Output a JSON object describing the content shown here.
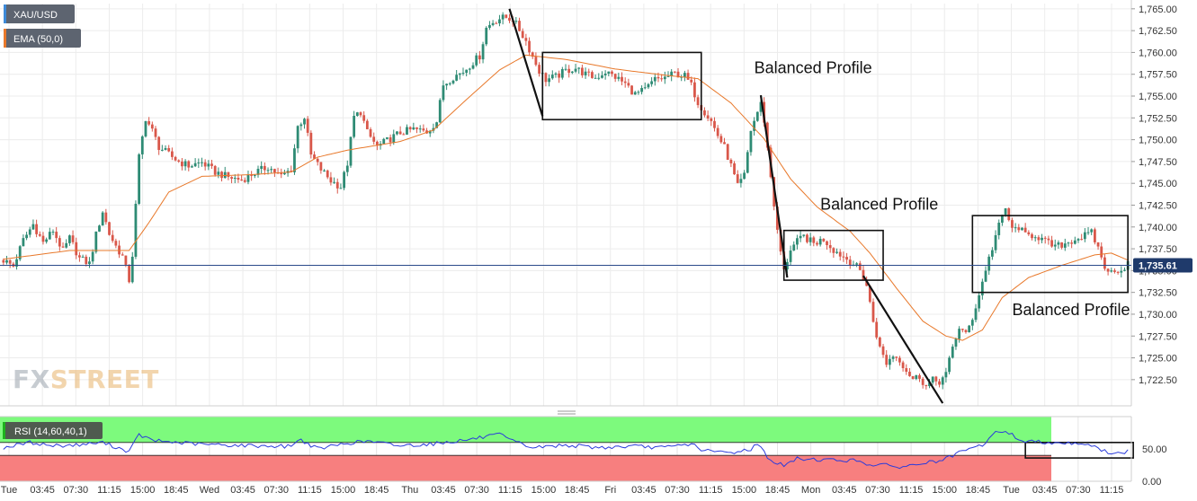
{
  "chart_data": {
    "type": "line",
    "instrument": {
      "symbol_label": "XAU/USD"
    },
    "indicator": {
      "label": "EMA (50,0)",
      "color": "#e8782a"
    },
    "last_price": {
      "label": "1,735.61",
      "value": 1735.61
    },
    "y_axis": {
      "ylim": [
        1719.5,
        1765.6
      ],
      "ticks": [
        "1,765.00",
        "1,762.50",
        "1,760.00",
        "1,757.50",
        "1,755.00",
        "1,752.50",
        "1,750.00",
        "1,747.50",
        "1,745.00",
        "1,742.50",
        "1,740.00",
        "1,737.50",
        "1,735.00",
        "1,732.50",
        "1,730.00",
        "1,727.50",
        "1,725.00",
        "1,722.50"
      ],
      "tick_values": [
        1765,
        1762.5,
        1760,
        1757.5,
        1755,
        1752.5,
        1750,
        1747.5,
        1745,
        1742.5,
        1740,
        1737.5,
        1735,
        1732.5,
        1730,
        1727.5,
        1725,
        1722.5
      ]
    },
    "x_axis": {
      "ticks": [
        "Tue",
        "03:45",
        "07:30",
        "11:15",
        "15:00",
        "18:45",
        "Wed",
        "03:45",
        "07:30",
        "11:15",
        "15:00",
        "18:45",
        "Thu",
        "03:45",
        "07:30",
        "11:15",
        "15:00",
        "18:45",
        "Fri",
        "03:45",
        "07:30",
        "11:15",
        "15:00",
        "18:45",
        "Mon",
        "03:45",
        "07:30",
        "11:15",
        "15:00",
        "18:45",
        "Tue",
        "03:45",
        "07:30",
        "11:15"
      ]
    },
    "price_series": {
      "name": "XAU/USD",
      "up_color": "#2e8b74",
      "down_color": "#d9574a",
      "anchors": [
        [
          0,
          1736.2
        ],
        [
          3,
          1735.5
        ],
        [
          6,
          1738.5
        ],
        [
          9,
          1740.3
        ],
        [
          12,
          1738.2
        ],
        [
          15,
          1739.6
        ],
        [
          18,
          1737.2
        ],
        [
          20,
          1738.7
        ],
        [
          23,
          1736.4
        ],
        [
          26,
          1735.8
        ],
        [
          28,
          1739.1
        ],
        [
          30,
          1741.8
        ],
        [
          32,
          1739.2
        ],
        [
          34,
          1737.8
        ],
        [
          36,
          1736.6
        ],
        [
          38,
          1733.9
        ],
        [
          39,
          1736.8
        ],
        [
          41,
          1748.0
        ],
        [
          43,
          1752.5
        ],
        [
          45,
          1751.0
        ],
        [
          47,
          1749.2
        ],
        [
          50,
          1748.3
        ],
        [
          53,
          1747.5
        ],
        [
          56,
          1747.0
        ],
        [
          60,
          1747.4
        ],
        [
          64,
          1746.3
        ],
        [
          68,
          1745.7
        ],
        [
          72,
          1745.4
        ],
        [
          76,
          1746.2
        ],
        [
          80,
          1746.9
        ],
        [
          84,
          1745.8
        ],
        [
          87,
          1746.6
        ],
        [
          89,
          1751.5
        ],
        [
          91,
          1752.6
        ],
        [
          93,
          1748.2
        ],
        [
          96,
          1746.6
        ],
        [
          99,
          1745.3
        ],
        [
          102,
          1744.6
        ],
        [
          104,
          1747.3
        ],
        [
          106,
          1752.6
        ],
        [
          108,
          1753.2
        ],
        [
          110,
          1750.8
        ],
        [
          113,
          1749.2
        ],
        [
          116,
          1749.9
        ],
        [
          120,
          1750.8
        ],
        [
          124,
          1751.2
        ],
        [
          128,
          1750.9
        ],
        [
          131,
          1752.1
        ],
        [
          133,
          1756.3
        ],
        [
          136,
          1757.2
        ],
        [
          139,
          1757.8
        ],
        [
          142,
          1758.9
        ],
        [
          144,
          1759.6
        ],
        [
          146,
          1762.8
        ],
        [
          148,
          1763.5
        ],
        [
          150,
          1763.9
        ],
        [
          152,
          1764.0
        ],
        [
          154,
          1763.8
        ],
        [
          156,
          1762.6
        ],
        [
          158,
          1761.3
        ],
        [
          160,
          1759.5
        ],
        [
          162,
          1757.9
        ],
        [
          164,
          1756.9
        ],
        [
          167,
          1757.2
        ],
        [
          170,
          1757.9
        ],
        [
          173,
          1758.2
        ],
        [
          176,
          1757.5
        ],
        [
          179,
          1757.1
        ],
        [
          182,
          1757.8
        ],
        [
          185,
          1757.2
        ],
        [
          188,
          1756.4
        ],
        [
          191,
          1755.2
        ],
        [
          194,
          1755.7
        ],
        [
          197,
          1756.9
        ],
        [
          200,
          1757.1
        ],
        [
          203,
          1757.6
        ],
        [
          206,
          1757.3
        ],
        [
          208,
          1756.2
        ],
        [
          210,
          1754.3
        ],
        [
          212,
          1753.2
        ],
        [
          214,
          1752.1
        ],
        [
          216,
          1750.5
        ],
        [
          218,
          1749.1
        ],
        [
          220,
          1747.0
        ],
        [
          222,
          1744.6
        ],
        [
          224,
          1745.9
        ],
        [
          226,
          1751.1
        ],
        [
          228,
          1753.2
        ],
        [
          229,
          1754.1
        ],
        [
          230,
          1752.2
        ],
        [
          232,
          1745.8
        ],
        [
          234,
          1739.4
        ],
        [
          236,
          1734.9
        ],
        [
          238,
          1737.5
        ],
        [
          240,
          1738.3
        ],
        [
          242,
          1738.9
        ],
        [
          245,
          1738.1
        ],
        [
          248,
          1738.6
        ],
        [
          251,
          1737.4
        ],
        [
          254,
          1736.6
        ],
        [
          257,
          1735.8
        ],
        [
          259,
          1735.0
        ],
        [
          261,
          1733.3
        ],
        [
          263,
          1729.2
        ],
        [
          265,
          1726.1
        ],
        [
          267,
          1724.4
        ],
        [
          269,
          1725.3
        ],
        [
          271,
          1724.8
        ],
        [
          273,
          1723.6
        ],
        [
          275,
          1722.6
        ],
        [
          277,
          1722.9
        ],
        [
          279,
          1721.7
        ],
        [
          281,
          1722.4
        ],
        [
          283,
          1722.3
        ],
        [
          285,
          1723.1
        ],
        [
          287,
          1726.2
        ],
        [
          289,
          1728.5
        ],
        [
          291,
          1727.6
        ],
        [
          293,
          1729.6
        ],
        [
          295,
          1732.2
        ],
        [
          297,
          1735.2
        ],
        [
          299,
          1737.6
        ],
        [
          300,
          1739.0
        ],
        [
          302,
          1741.2
        ],
        [
          303,
          1742.1
        ],
        [
          305,
          1739.6
        ],
        [
          307,
          1740.0
        ],
        [
          309,
          1739.0
        ],
        [
          312,
          1739.1
        ],
        [
          315,
          1738.3
        ],
        [
          318,
          1737.7
        ],
        [
          321,
          1738.1
        ],
        [
          324,
          1738.6
        ],
        [
          327,
          1739.0
        ],
        [
          329,
          1739.3
        ],
        [
          331,
          1737.6
        ],
        [
          333,
          1735.5
        ],
        [
          334,
          1734.6
        ],
        [
          336,
          1735.2
        ],
        [
          338,
          1735.0
        ],
        [
          340,
          1735.9
        ]
      ]
    },
    "ema_series": {
      "name": "EMA (50,0)",
      "color": "#e8782a",
      "points": [
        [
          0,
          1736.3
        ],
        [
          20,
          1737.3
        ],
        [
          38,
          1737.3
        ],
        [
          44,
          1740.5
        ],
        [
          50,
          1744.0
        ],
        [
          60,
          1745.8
        ],
        [
          75,
          1746.0
        ],
        [
          87,
          1746.3
        ],
        [
          95,
          1748.0
        ],
        [
          104,
          1748.8
        ],
        [
          112,
          1749.3
        ],
        [
          120,
          1749.8
        ],
        [
          130,
          1751.1
        ],
        [
          140,
          1754.6
        ],
        [
          150,
          1758.0
        ],
        [
          158,
          1759.7
        ],
        [
          170,
          1759.2
        ],
        [
          185,
          1758.1
        ],
        [
          200,
          1757.4
        ],
        [
          210,
          1757.0
        ],
        [
          220,
          1754.2
        ],
        [
          230,
          1750.1
        ],
        [
          238,
          1745.5
        ],
        [
          246,
          1742.3
        ],
        [
          256,
          1739.5
        ],
        [
          262,
          1737.0
        ],
        [
          270,
          1733.0
        ],
        [
          278,
          1729.2
        ],
        [
          285,
          1727.5
        ],
        [
          290,
          1727.0
        ],
        [
          296,
          1728.2
        ],
        [
          302,
          1731.9
        ],
        [
          310,
          1734.2
        ],
        [
          320,
          1735.6
        ],
        [
          330,
          1736.8
        ],
        [
          335,
          1737.0
        ],
        [
          340,
          1736.2
        ]
      ]
    },
    "trend_lines": [
      {
        "from": [
          153,
          1765.0
        ],
        "to": [
          163,
          1752.7
        ]
      },
      {
        "from": [
          229,
          1755.1
        ],
        "to": [
          237,
          1734.2
        ]
      },
      {
        "from": [
          260,
          1734.4
        ],
        "to": [
          284,
          1719.8
        ]
      }
    ],
    "boxes": [
      {
        "from": [
          163,
          1752.3
        ],
        "to": [
          211,
          1760.0
        ]
      },
      {
        "from": [
          236,
          1733.9
        ],
        "to": [
          266,
          1739.6
        ]
      },
      {
        "from": [
          293,
          1732.5
        ],
        "to": [
          340,
          1741.3
        ]
      }
    ],
    "annotations": [
      {
        "text": "Balanced Profile",
        "at": [
          227,
          1757.6
        ]
      },
      {
        "text": "Balanced Profile",
        "at": [
          247,
          1742.0
        ]
      },
      {
        "text": "Balanced Profile",
        "at": [
          305,
          1729.9
        ]
      }
    ],
    "rsi": {
      "label": "RSI (14,60,40,1)",
      "ticks": [
        "50.00",
        "0.00"
      ],
      "tick_values": [
        50,
        0
      ],
      "ylim": [
        0,
        100
      ],
      "upper_level": 60,
      "lower_level": 40,
      "upper_zone_color": "#7dfa7d",
      "lower_zone_color": "#f77f7f",
      "line_color": "#2a3bdc",
      "box": {
        "from": [
          309,
          36
        ],
        "to": [
          340,
          60
        ]
      },
      "anchors": [
        [
          0,
          52
        ],
        [
          8,
          60
        ],
        [
          15,
          55
        ],
        [
          22,
          56
        ],
        [
          30,
          60
        ],
        [
          38,
          46
        ],
        [
          41,
          72
        ],
        [
          45,
          63
        ],
        [
          60,
          57
        ],
        [
          75,
          55
        ],
        [
          86,
          54
        ],
        [
          90,
          64
        ],
        [
          95,
          50
        ],
        [
          104,
          59
        ],
        [
          110,
          62
        ],
        [
          120,
          55
        ],
        [
          130,
          58
        ],
        [
          140,
          64
        ],
        [
          150,
          72
        ],
        [
          154,
          62
        ],
        [
          160,
          52
        ],
        [
          170,
          56
        ],
        [
          180,
          52
        ],
        [
          190,
          54
        ],
        [
          200,
          52
        ],
        [
          208,
          58
        ],
        [
          212,
          47
        ],
        [
          220,
          44
        ],
        [
          226,
          50
        ],
        [
          228,
          58
        ],
        [
          232,
          32
        ],
        [
          236,
          24
        ],
        [
          240,
          35
        ],
        [
          250,
          33
        ],
        [
          258,
          32
        ],
        [
          262,
          26
        ],
        [
          268,
          24
        ],
        [
          272,
          22
        ],
        [
          278,
          28
        ],
        [
          284,
          32
        ],
        [
          289,
          44
        ],
        [
          296,
          56
        ],
        [
          300,
          75
        ],
        [
          303,
          78
        ],
        [
          308,
          62
        ],
        [
          318,
          60
        ],
        [
          328,
          58
        ],
        [
          332,
          48
        ],
        [
          336,
          42
        ],
        [
          340,
          46
        ]
      ]
    }
  },
  "watermark": {
    "part1": "FX",
    "part2": "STREET"
  }
}
